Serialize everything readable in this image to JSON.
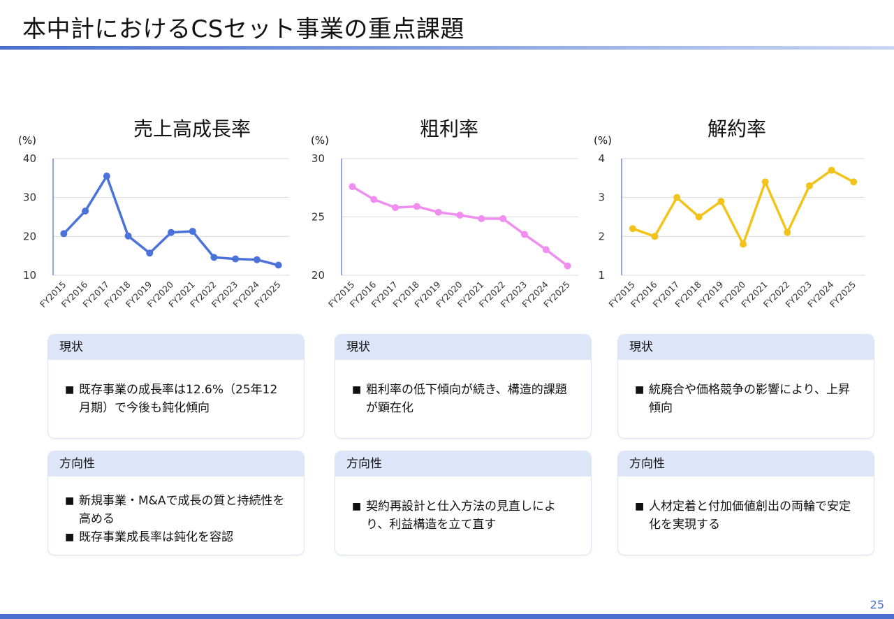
{
  "page": {
    "title": "本中計におけるCSセット事業の重点課題",
    "page_number": "25",
    "accent_color": "#4a6fd0"
  },
  "chart_data": [
    {
      "type": "line",
      "title": "売上高成長率",
      "ylabel": "(%)",
      "categories": [
        "FY2015",
        "FY2016",
        "FY2017",
        "FY2018",
        "FY2019",
        "FY2020",
        "FY2021",
        "FY2022",
        "FY2023",
        "FY2024",
        "FY2025"
      ],
      "values": [
        20.7,
        26.5,
        35.5,
        20.1,
        15.7,
        21.0,
        21.3,
        14.6,
        14.2,
        14.0,
        12.6
      ],
      "ylim": [
        10,
        40
      ],
      "yticks": [
        "10",
        "20",
        "30",
        "40"
      ],
      "color": "#4a72d8",
      "grid": true
    },
    {
      "type": "line",
      "title": "粗利率",
      "ylabel": "(%)",
      "categories": [
        "FY2015",
        "FY2016",
        "FY2017",
        "FY2018",
        "FY2019",
        "FY2020",
        "FY2021",
        "FY2022",
        "FY2023",
        "FY2024",
        "FY2025"
      ],
      "values": [
        27.6,
        26.5,
        25.8,
        25.9,
        25.4,
        25.15,
        24.85,
        24.85,
        23.5,
        22.2,
        20.8
      ],
      "ylim": [
        20,
        30
      ],
      "yticks": [
        "20",
        "25",
        "30"
      ],
      "color": "#f08ef0",
      "grid": true
    },
    {
      "type": "line",
      "title": "解約率",
      "ylabel": "(%)",
      "categories": [
        "FY2015",
        "FY2016",
        "FY2017",
        "FY2018",
        "FY2019",
        "FY2020",
        "FY2021",
        "FY2022",
        "FY2023",
        "FY2024",
        "FY2025"
      ],
      "values": [
        2.2,
        2.0,
        3.0,
        2.5,
        2.9,
        1.8,
        3.4,
        2.1,
        3.3,
        3.7,
        3.4
      ],
      "ylim": [
        1,
        4
      ],
      "yticks": [
        "1",
        "2",
        "3",
        "4"
      ],
      "color": "#f2c31a",
      "grid": true
    }
  ],
  "cards": {
    "sales": {
      "status_label": "現状",
      "status_bullets": [
        "既存事業の成長率は12.6%（25年12月期）で今後も鈍化傾向"
      ],
      "direction_label": "方向性",
      "direction_bullets": [
        "新規事業・M&Aで成長の質と持続性を高める",
        "既存事業成長率は鈍化を容認"
      ]
    },
    "margin": {
      "status_label": "現状",
      "status_bullets": [
        "粗利率の低下傾向が続き、構造的課題が顕在化"
      ],
      "direction_label": "方向性",
      "direction_bullets": [
        "契約再設計と仕入方法の見直しにより、利益構造を立て直す"
      ]
    },
    "churn": {
      "status_label": "現状",
      "status_bullets": [
        "統廃合や価格競争の影響により、上昇傾向"
      ],
      "direction_label": "方向性",
      "direction_bullets": [
        "人材定着と付加価値創出の両輪で安定化を実現する"
      ]
    }
  },
  "bullet_mark": "■"
}
